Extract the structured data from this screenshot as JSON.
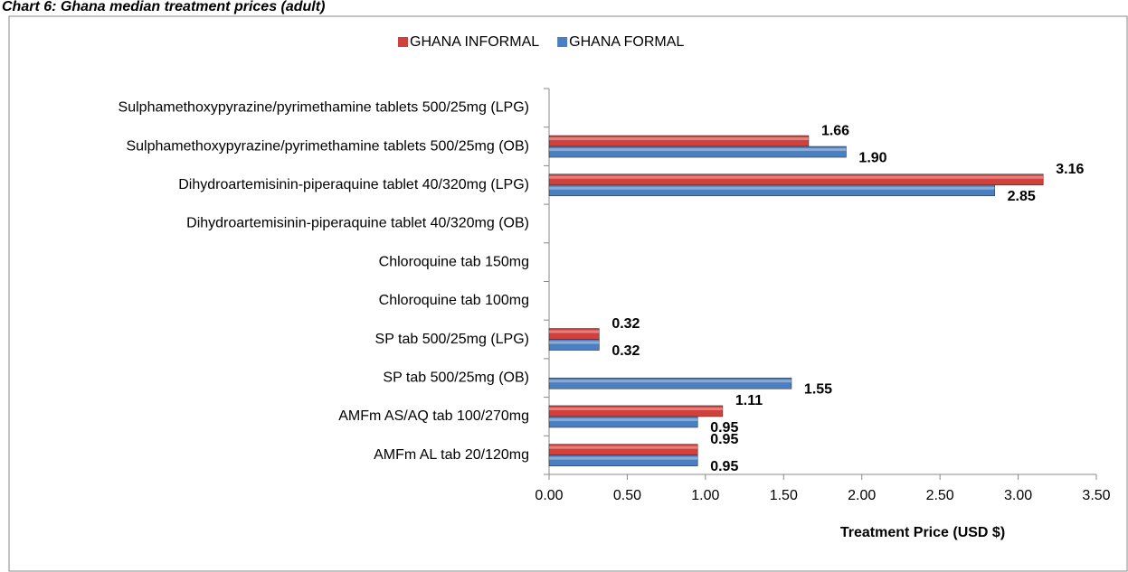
{
  "chart_data": {
    "type": "hbar",
    "title": "Chart 6: Ghana median treatment prices (adult)",
    "categories": [
      "Sulphamethoxypyrazine/pyrimethamine tablets 500/25mg (LPG)",
      "Sulphamethoxypyrazine/pyrimethamine tablets 500/25mg (OB)",
      "Dihydroartemisinin-piperaquine tablet 40/320mg (LPG)",
      "Dihydroartemisinin-piperaquine tablet 40/320mg (OB)",
      "Chloroquine tab 150mg",
      "Chloroquine tab 100mg",
      "SP tab 500/25mg (LPG)",
      "SP tab 500/25mg (OB)",
      "AMFm AS/AQ tab 100/270mg",
      "AMFm AL tab 20/120mg"
    ],
    "series": [
      {
        "name": "GHANA INFORMAL",
        "color": "#d2403c",
        "values": [
          null,
          1.66,
          3.16,
          null,
          null,
          null,
          0.32,
          null,
          1.11,
          0.95
        ],
        "value_labels": [
          null,
          "1.66",
          "3.16",
          null,
          null,
          null,
          "0.32",
          null,
          "1.11",
          "0.95"
        ]
      },
      {
        "name": "GHANA FORMAL",
        "color": "#4a7fc1",
        "values": [
          null,
          1.9,
          2.85,
          null,
          null,
          null,
          0.32,
          1.55,
          0.95,
          0.95
        ],
        "value_labels": [
          null,
          "1.90",
          "2.85",
          null,
          null,
          null,
          "0.32",
          "1.55",
          "0.95",
          "0.95"
        ]
      }
    ],
    "xlim": [
      0,
      3.5
    ],
    "xticks": [
      {
        "value": 0,
        "label": "0.00"
      },
      {
        "value": 0.5,
        "label": "0.50"
      },
      {
        "value": 1,
        "label": "1.00"
      },
      {
        "value": 1.5,
        "label": "1.50"
      },
      {
        "value": 2,
        "label": "2.00"
      },
      {
        "value": 2.5,
        "label": "2.50"
      },
      {
        "value": 3,
        "label": "3.00"
      },
      {
        "value": 3.5,
        "label": "3.50"
      }
    ],
    "xlabel": "Treatment Price (USD $)",
    "legend": "top"
  }
}
